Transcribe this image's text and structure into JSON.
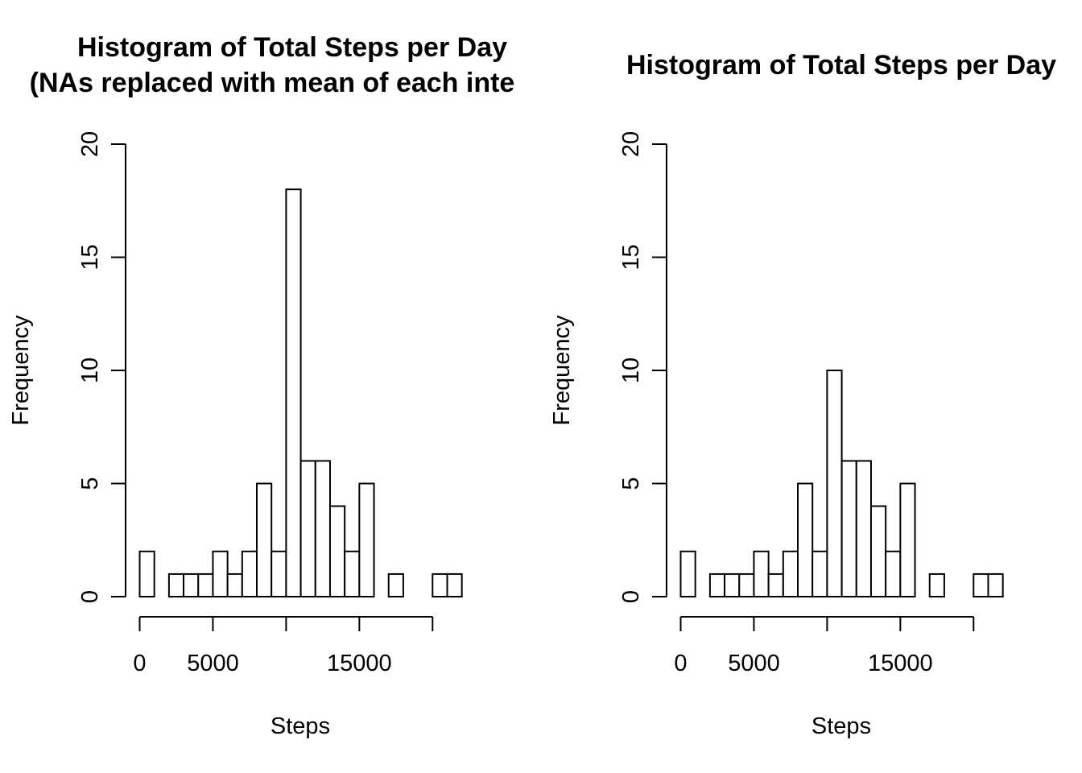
{
  "chart_data": [
    {
      "type": "bar",
      "title_lines": [
        "Histogram of Total Steps per Day",
        "(NAs replaced with mean of each inte"
      ],
      "xlabel": "Steps",
      "ylabel": "Frequency",
      "ylim": [
        0,
        20
      ],
      "y_ticks": [
        "0",
        "5",
        "10",
        "15",
        "20"
      ],
      "x_ticks": [
        "0",
        "5000",
        "15000"
      ],
      "bin_edges": [
        0,
        1000,
        2000,
        3000,
        4000,
        5000,
        6000,
        7000,
        8000,
        9000,
        10000,
        11000,
        12000,
        13000,
        14000,
        15000,
        16000,
        17000,
        18000,
        19000,
        20000,
        21000,
        22000
      ],
      "values": [
        2,
        0,
        1,
        1,
        1,
        2,
        1,
        2,
        5,
        2,
        18,
        6,
        6,
        4,
        2,
        5,
        0,
        1,
        0,
        0,
        1,
        1
      ]
    },
    {
      "type": "bar",
      "title_lines": [
        "Histogram of Total Steps per Day"
      ],
      "xlabel": "Steps",
      "ylabel": "Frequency",
      "ylim": [
        0,
        20
      ],
      "y_ticks": [
        "0",
        "5",
        "10",
        "15",
        "20"
      ],
      "x_ticks": [
        "0",
        "5000",
        "15000"
      ],
      "bin_edges": [
        0,
        1000,
        2000,
        3000,
        4000,
        5000,
        6000,
        7000,
        8000,
        9000,
        10000,
        11000,
        12000,
        13000,
        14000,
        15000,
        16000,
        17000,
        18000,
        19000,
        20000,
        21000,
        22000
      ],
      "values": [
        2,
        0,
        1,
        1,
        1,
        2,
        1,
        2,
        5,
        2,
        10,
        6,
        6,
        4,
        2,
        5,
        0,
        1,
        0,
        0,
        1,
        1
      ]
    }
  ]
}
